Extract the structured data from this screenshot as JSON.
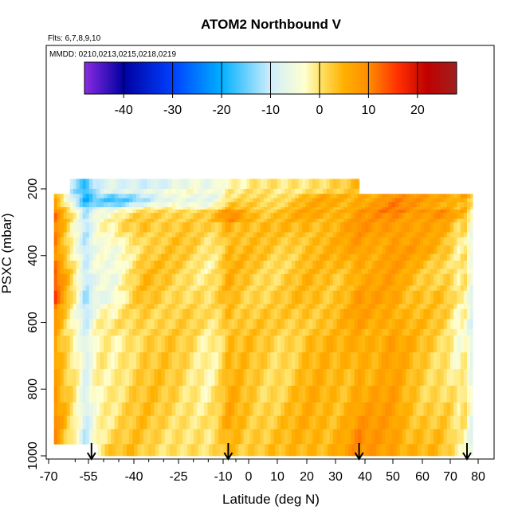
{
  "chart_data": {
    "type": "heatmap",
    "title": "ATOM2 Northbound V",
    "flights_label": "Flts: 6,7,8,9,10",
    "dates_label": "MMDD: 0210,0213,0215,0218,0219",
    "xlabel": "Latitude (deg N)",
    "ylabel": "PSXC (mbar)",
    "xlim": [
      -70,
      85
    ],
    "ylim": [
      1000,
      0
    ],
    "x_ticks": [
      -70,
      -55,
      -40,
      -25,
      -10,
      0,
      10,
      20,
      30,
      40,
      50,
      60,
      70,
      80
    ],
    "y_ticks": [
      200,
      400,
      600,
      800,
      1000
    ],
    "colorbar": {
      "range": [
        -48,
        28
      ],
      "ticks": [
        -40,
        -30,
        -20,
        -10,
        0,
        10,
        20
      ],
      "stops": [
        {
          "v": -48,
          "c": "#8a2be2"
        },
        {
          "v": -40,
          "c": "#0000a0"
        },
        {
          "v": -30,
          "c": "#0040ff"
        },
        {
          "v": -20,
          "c": "#00b0ff"
        },
        {
          "v": -10,
          "c": "#cfeefc"
        },
        {
          "v": -3,
          "c": "#ffffd0"
        },
        {
          "v": 0,
          "c": "#ffe46a"
        },
        {
          "v": 5,
          "c": "#ffb000"
        },
        {
          "v": 10,
          "c": "#ff8c00"
        },
        {
          "v": 16,
          "c": "#ff3000"
        },
        {
          "v": 22,
          "c": "#c00000"
        },
        {
          "v": 28,
          "c": "#a02020"
        }
      ]
    },
    "sounding_arrows_lat": [
      -54,
      -8,
      38,
      76
    ],
    "lat_profile": {
      "lat": [
        -68,
        -66,
        -64,
        -62,
        -60,
        -58,
        -56,
        -55,
        -53,
        -51,
        -49,
        -45,
        -40,
        -35,
        -30,
        -25,
        -20,
        -15,
        -12,
        -10,
        -8,
        -5,
        0,
        5,
        10,
        15,
        20,
        25,
        30,
        35,
        38,
        40,
        45,
        50,
        55,
        60,
        65,
        70,
        73,
        75,
        77,
        80
      ],
      "v": [
        14,
        7,
        3,
        -1,
        -5,
        -10,
        -20,
        -14,
        -4,
        1,
        3,
        4,
        4,
        3,
        2,
        1,
        -1,
        -4,
        -2,
        2,
        7,
        4,
        3,
        2,
        1,
        3,
        5,
        4,
        3,
        5,
        9,
        7,
        7,
        9,
        5,
        3,
        2,
        1,
        -4,
        3,
        -8,
        -13
      ]
    },
    "band_lat_range": [
      -68,
      78
    ],
    "bands": [
      {
        "p": [
          170,
          200
        ],
        "lat": [
          -62,
          38
        ],
        "v": [
          -16,
          -18,
          -20,
          -17,
          -14,
          -9,
          -6,
          -4,
          -3,
          -2,
          -1,
          -1
        ]
      },
      {
        "p": [
          200,
          215
        ],
        "lat": [
          -62,
          38
        ],
        "v": [
          -18,
          -20,
          -17,
          -12,
          -9,
          -6,
          -4,
          -3,
          -3,
          -2,
          -2,
          -1
        ]
      },
      {
        "p": [
          215,
          228
        ],
        "lat": [
          -68,
          78
        ],
        "v": [
          4,
          -20,
          -30,
          -20,
          -12,
          -8,
          -4,
          -2,
          2,
          6,
          4,
          8,
          10,
          12,
          14
        ]
      },
      {
        "p": [
          228,
          240
        ],
        "lat": [
          -68,
          78
        ],
        "v": [
          5,
          -22,
          -35,
          -24,
          -14,
          -8,
          -3,
          0,
          3,
          7,
          5,
          9,
          12,
          13,
          8
        ]
      },
      {
        "p": [
          240,
          255
        ],
        "lat": [
          -68,
          78
        ],
        "v": [
          6,
          -18,
          -28,
          -16,
          -9,
          -4,
          0,
          2,
          4,
          6,
          6,
          10,
          12,
          10,
          6
        ]
      },
      {
        "p": [
          255,
          262
        ],
        "lat": [
          -68,
          78
        ],
        "v": [
          7,
          -10,
          -14,
          -8,
          -4,
          -1,
          1,
          3,
          4,
          5,
          7,
          10,
          12,
          10,
          5
        ]
      },
      {
        "p": [
          262,
          272
        ],
        "lat": [
          -68,
          78
        ],
        "v": [
          8,
          -6,
          -10,
          -4,
          2,
          6,
          10,
          4,
          6,
          8,
          9,
          12,
          15,
          16,
          4
        ]
      },
      {
        "p": [
          272,
          290
        ],
        "lat": [
          -68,
          78
        ],
        "v": [
          10,
          -4,
          -8,
          0,
          4,
          6,
          12,
          5,
          5,
          8,
          7,
          10,
          12,
          14,
          3
        ]
      },
      {
        "p": [
          290,
          300
        ],
        "lat": [
          -68,
          78
        ],
        "v": [
          11,
          -2,
          -6,
          2,
          4,
          5,
          14,
          4,
          5,
          6,
          8,
          9,
          11,
          10,
          2
        ]
      },
      {
        "p": [
          300,
          330
        ],
        "lat": [
          -68,
          78
        ],
        "v": [
          9,
          -3,
          -8,
          3,
          5,
          4,
          6,
          5,
          4,
          6,
          8,
          9,
          10,
          8,
          1
        ]
      },
      {
        "p": [
          330,
          345
        ],
        "lat": [
          -68,
          78
        ],
        "v": [
          10,
          -4,
          -10,
          2,
          4,
          3,
          5,
          4,
          3,
          5,
          7,
          8,
          9,
          7,
          0
        ]
      },
      {
        "p": [
          345,
          370
        ],
        "lat": [
          -68,
          78
        ],
        "v": [
          11,
          -5,
          -12,
          2,
          4,
          3,
          4,
          3,
          3,
          5,
          7,
          7,
          8,
          6,
          -2
        ]
      },
      {
        "p": [
          370,
          395
        ],
        "lat": [
          -68,
          78
        ],
        "v": [
          12,
          -6,
          -14,
          2,
          3,
          3,
          4,
          3,
          3,
          4,
          7,
          7,
          9,
          7,
          -3
        ]
      },
      {
        "p": [
          395,
          415
        ],
        "lat": [
          -68,
          78
        ],
        "v": [
          10,
          -5,
          -12,
          2,
          3,
          3,
          4,
          3,
          2,
          4,
          6,
          6,
          7,
          5,
          -2
        ]
      },
      {
        "p": [
          415,
          440
        ],
        "lat": [
          -68,
          78
        ],
        "v": [
          13,
          -4,
          -12,
          3,
          3,
          2,
          4,
          2,
          2,
          3,
          6,
          6,
          6,
          3,
          -3
        ]
      },
      {
        "p": [
          440,
          455
        ],
        "lat": [
          -68,
          78
        ],
        "v": [
          14,
          -3,
          -10,
          3,
          3,
          2,
          3,
          2,
          2,
          3,
          5,
          5,
          5,
          2,
          -4
        ]
      },
      {
        "p": [
          455,
          490
        ],
        "lat": [
          -68,
          78
        ],
        "v": [
          16,
          -4,
          -12,
          3,
          3,
          2,
          3,
          2,
          2,
          3,
          5,
          5,
          5,
          2,
          -4
        ]
      },
      {
        "p": [
          490,
          505
        ],
        "lat": [
          -68,
          78
        ],
        "v": [
          13,
          -3,
          -10,
          3,
          3,
          2,
          3,
          2,
          2,
          3,
          5,
          5,
          4,
          2,
          -5
        ]
      },
      {
        "p": [
          505,
          545
        ],
        "lat": [
          -68,
          78
        ],
        "v": [
          15,
          -4,
          -14,
          3,
          3,
          2,
          3,
          2,
          2,
          4,
          6,
          6,
          5,
          3,
          -5
        ]
      },
      {
        "p": [
          545,
          560
        ],
        "lat": [
          -68,
          78
        ],
        "v": [
          9,
          -3,
          -10,
          3,
          3,
          2,
          3,
          2,
          2,
          4,
          5,
          5,
          4,
          2,
          -5
        ]
      },
      {
        "p": [
          560,
          590
        ],
        "lat": [
          -68,
          78
        ],
        "v": [
          8,
          -3,
          -9,
          2,
          3,
          2,
          4,
          2,
          2,
          4,
          6,
          6,
          4,
          2,
          -4
        ]
      },
      {
        "p": [
          590,
          620
        ],
        "lat": [
          -68,
          78
        ],
        "v": [
          6,
          -2,
          -6,
          2,
          2,
          2,
          3,
          2,
          2,
          3,
          5,
          6,
          4,
          2,
          -6
        ]
      },
      {
        "p": [
          620,
          640
        ],
        "lat": [
          -68,
          78
        ],
        "v": [
          5,
          -2,
          -6,
          2,
          2,
          2,
          3,
          2,
          2,
          3,
          4,
          5,
          3,
          2,
          -6
        ]
      },
      {
        "p": [
          640,
          690
        ],
        "lat": [
          -68,
          78
        ],
        "v": [
          6,
          -2,
          -7,
          2,
          2,
          1,
          3,
          2,
          2,
          4,
          5,
          6,
          4,
          2,
          -7
        ]
      },
      {
        "p": [
          690,
          740
        ],
        "lat": [
          -68,
          78
        ],
        "v": [
          5,
          -1,
          -5,
          2,
          2,
          1,
          3,
          2,
          2,
          4,
          5,
          5,
          3,
          1,
          -6
        ]
      },
      {
        "p": [
          740,
          790
        ],
        "lat": [
          -68,
          78
        ],
        "v": [
          4,
          -1,
          -4,
          2,
          2,
          1,
          3,
          2,
          2,
          4,
          5,
          4,
          3,
          1,
          -5
        ]
      },
      {
        "p": [
          790,
          840
        ],
        "lat": [
          -68,
          78
        ],
        "v": [
          5,
          -1,
          -3,
          2,
          2,
          1,
          4,
          2,
          3,
          5,
          6,
          5,
          3,
          1,
          -3
        ]
      },
      {
        "p": [
          840,
          880
        ],
        "lat": [
          -68,
          78
        ],
        "v": [
          6,
          -1,
          -3,
          2,
          2,
          1,
          5,
          3,
          3,
          5,
          7,
          6,
          4,
          2,
          -3
        ]
      },
      {
        "p": [
          880,
          920
        ],
        "lat": [
          -68,
          78
        ],
        "v": [
          7,
          -1,
          -3,
          2,
          2,
          1,
          6,
          3,
          4,
          6,
          8,
          7,
          5,
          2,
          -4
        ]
      },
      {
        "p": [
          920,
          965
        ],
        "lat": [
          -68,
          78
        ],
        "v": [
          5,
          -2,
          -2,
          2,
          1,
          0,
          5,
          3,
          4,
          6,
          9,
          8,
          5,
          3,
          -5
        ]
      },
      {
        "p": [
          965,
          1000
        ],
        "lat": [
          -52,
          78
        ],
        "v": [
          -1,
          2,
          1,
          0,
          4,
          3,
          4,
          6,
          9,
          8,
          6,
          3,
          -4
        ]
      }
    ]
  }
}
